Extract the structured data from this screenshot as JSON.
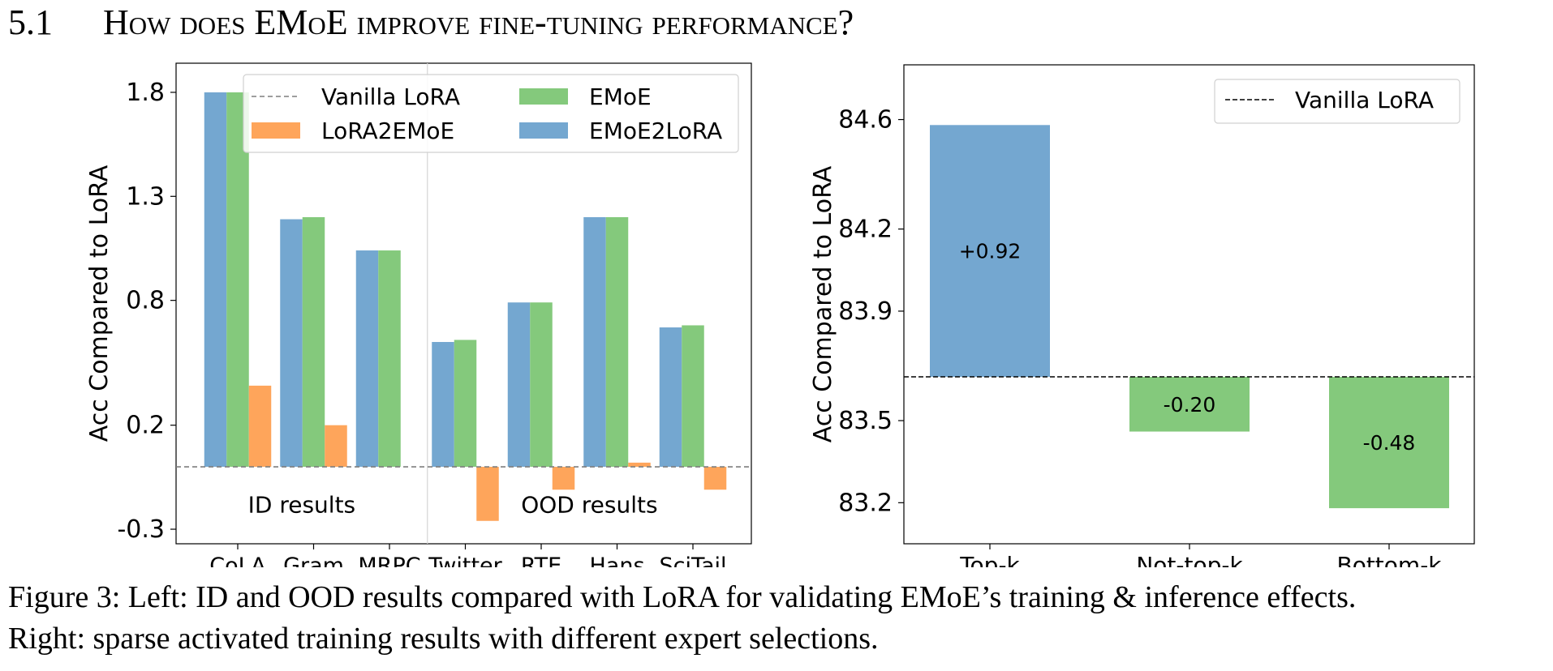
{
  "section": {
    "number": "5.1",
    "title": "How does EMoE improve fine-tuning performance?"
  },
  "caption": {
    "label": "Figure 3:",
    "line1": "Left: ID and OOD results compared with LoRA for validating EMoE’s training & inference effects.",
    "line2": "Right: sparse activated training results with different expert selections."
  },
  "colors": {
    "emoe2lora": "#74a7d0",
    "emoe": "#84c97c",
    "lora2emoe": "#fea55b",
    "baseline_left": "#7f7f7f",
    "baseline_right": "#000000"
  },
  "chart_data": [
    {
      "type": "bar",
      "ylabel": "Acc Compared to LoRA",
      "ylim": [
        -0.37,
        1.94
      ],
      "yticks": [
        -0.3,
        0.2,
        0.8,
        1.3,
        1.8
      ],
      "ytick_labels": [
        "-0.3",
        "0.2",
        "0.8",
        "1.3",
        "1.8"
      ],
      "categories": [
        "CoLA",
        "Gram",
        "MRPC",
        "Twitter",
        "RTE",
        "Hans",
        "SciTail"
      ],
      "series": [
        {
          "name": "EMoE2LoRA",
          "color_key": "emoe2lora",
          "values": [
            1.8,
            1.19,
            1.04,
            0.6,
            0.79,
            1.2,
            0.67
          ]
        },
        {
          "name": "EMoE",
          "color_key": "emoe",
          "values": [
            1.8,
            1.2,
            1.04,
            0.61,
            0.79,
            1.2,
            0.68
          ]
        },
        {
          "name": "LoRA2EMoE",
          "color_key": "lora2emoe",
          "values": [
            0.39,
            0.2,
            0.0,
            -0.26,
            -0.11,
            0.02,
            -0.11
          ]
        }
      ],
      "baseline": {
        "name": "Vanilla LoRA",
        "value": 0.0,
        "style": "dashed"
      },
      "groups": [
        {
          "label": "ID results",
          "categories": [
            "CoLA",
            "Gram",
            "MRPC"
          ]
        },
        {
          "label": "OOD results",
          "categories": [
            "Twitter",
            "RTE",
            "Hans",
            "SciTail"
          ]
        }
      ],
      "legend": {
        "placement": "top-right",
        "entries": [
          "Vanilla LoRA",
          "LoRA2EMoE",
          "EMoE",
          "EMoE2LoRA"
        ]
      },
      "grid": false
    },
    {
      "type": "bar",
      "ylabel": "Acc Compared to LoRA",
      "ylim": [
        83.05,
        84.8
      ],
      "yticks": [
        83.2,
        83.5,
        83.9,
        84.2,
        84.6
      ],
      "ytick_labels": [
        "83.2",
        "83.5",
        "83.9",
        "84.2",
        "84.6"
      ],
      "baseline": {
        "name": "Vanilla LoRA",
        "value": 83.66,
        "style": "dashed"
      },
      "categories": [
        "Top-k",
        "Not-top-k",
        "Bottom-k"
      ],
      "values": [
        84.58,
        83.46,
        83.18
      ],
      "bar_color_keys": [
        "emoe2lora",
        "emoe",
        "emoe"
      ],
      "data_labels": [
        "+0.92",
        "-0.20",
        "-0.48"
      ],
      "legend": {
        "placement": "top-right",
        "entries": [
          "Vanilla LoRA"
        ]
      },
      "grid": false
    }
  ]
}
